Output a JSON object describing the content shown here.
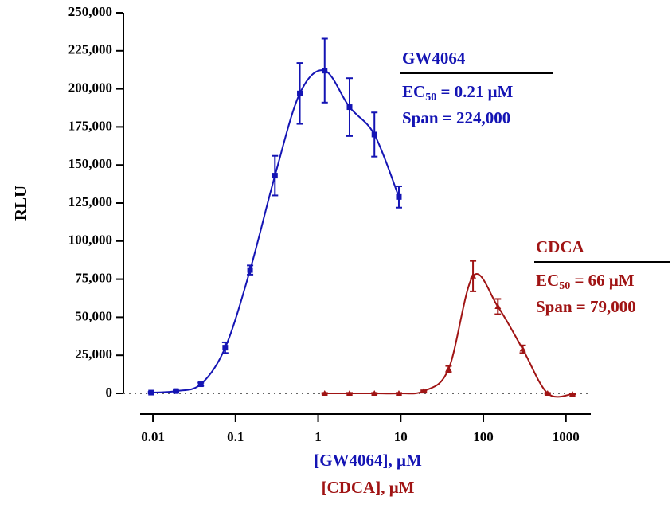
{
  "chart_data": {
    "type": "scatter",
    "ylabel": "RLU",
    "xlabels": [
      {
        "text": "[GW4064], μM",
        "color": "#1414b4"
      },
      {
        "text": "[CDCA], μM",
        "color": "#a01414"
      }
    ],
    "xscale": "log",
    "xlim": [
      0.007,
      2000
    ],
    "xticks": [
      0.01,
      0.1,
      1,
      10,
      100,
      1000
    ],
    "ylim": [
      0,
      250000
    ],
    "yticks": [
      0,
      {
        "value": 25000,
        "label": "25,000"
      },
      {
        "value": 50000,
        "label": "50,000"
      },
      {
        "value": 75000,
        "label": "75,000"
      },
      {
        "value": 100000,
        "label": "100,000"
      },
      {
        "value": 125000,
        "label": "125,000"
      },
      {
        "value": 150000,
        "label": "150,000"
      },
      {
        "value": 175000,
        "label": "175,000"
      },
      {
        "value": 200000,
        "label": "200,000"
      },
      {
        "value": 225000,
        "label": "225,000"
      },
      {
        "value": 250000,
        "label": "250,000"
      }
    ],
    "zero_line": true,
    "series": [
      {
        "name": "GW4064",
        "color": "#1414b4",
        "marker": "square",
        "x": [
          0.0095,
          0.019,
          0.038,
          0.075,
          0.15,
          0.3,
          0.6,
          1.2,
          2.4,
          4.8,
          9.5
        ],
        "values": [
          500,
          1500,
          6000,
          30000,
          81000,
          143000,
          197000,
          212000,
          188000,
          170000,
          129000
        ],
        "errors": [
          500,
          500,
          1000,
          3500,
          3000,
          13000,
          20000,
          21000,
          19000,
          14500,
          7000
        ],
        "annotation": {
          "title": "GW4064",
          "ec50": [
            "EC",
            "50",
            " = 0.21 μM"
          ],
          "span": "Span = 224,000"
        }
      },
      {
        "name": "CDCA",
        "color": "#a01414",
        "marker": "triangle",
        "x": [
          1.2,
          2.4,
          4.8,
          9.5,
          19,
          38,
          75,
          150,
          300,
          600,
          1200
        ],
        "values": [
          0,
          0,
          0,
          0,
          1500,
          16000,
          77000,
          57000,
          29000,
          0,
          -500
        ],
        "errors": [
          300,
          300,
          300,
          300,
          500,
          2000,
          10000,
          5000,
          2500,
          300,
          300
        ],
        "annotation": {
          "title": "CDCA",
          "ec50": [
            "EC",
            "50",
            " = 66 μM"
          ],
          "span": "Span = 79,000"
        }
      }
    ]
  }
}
